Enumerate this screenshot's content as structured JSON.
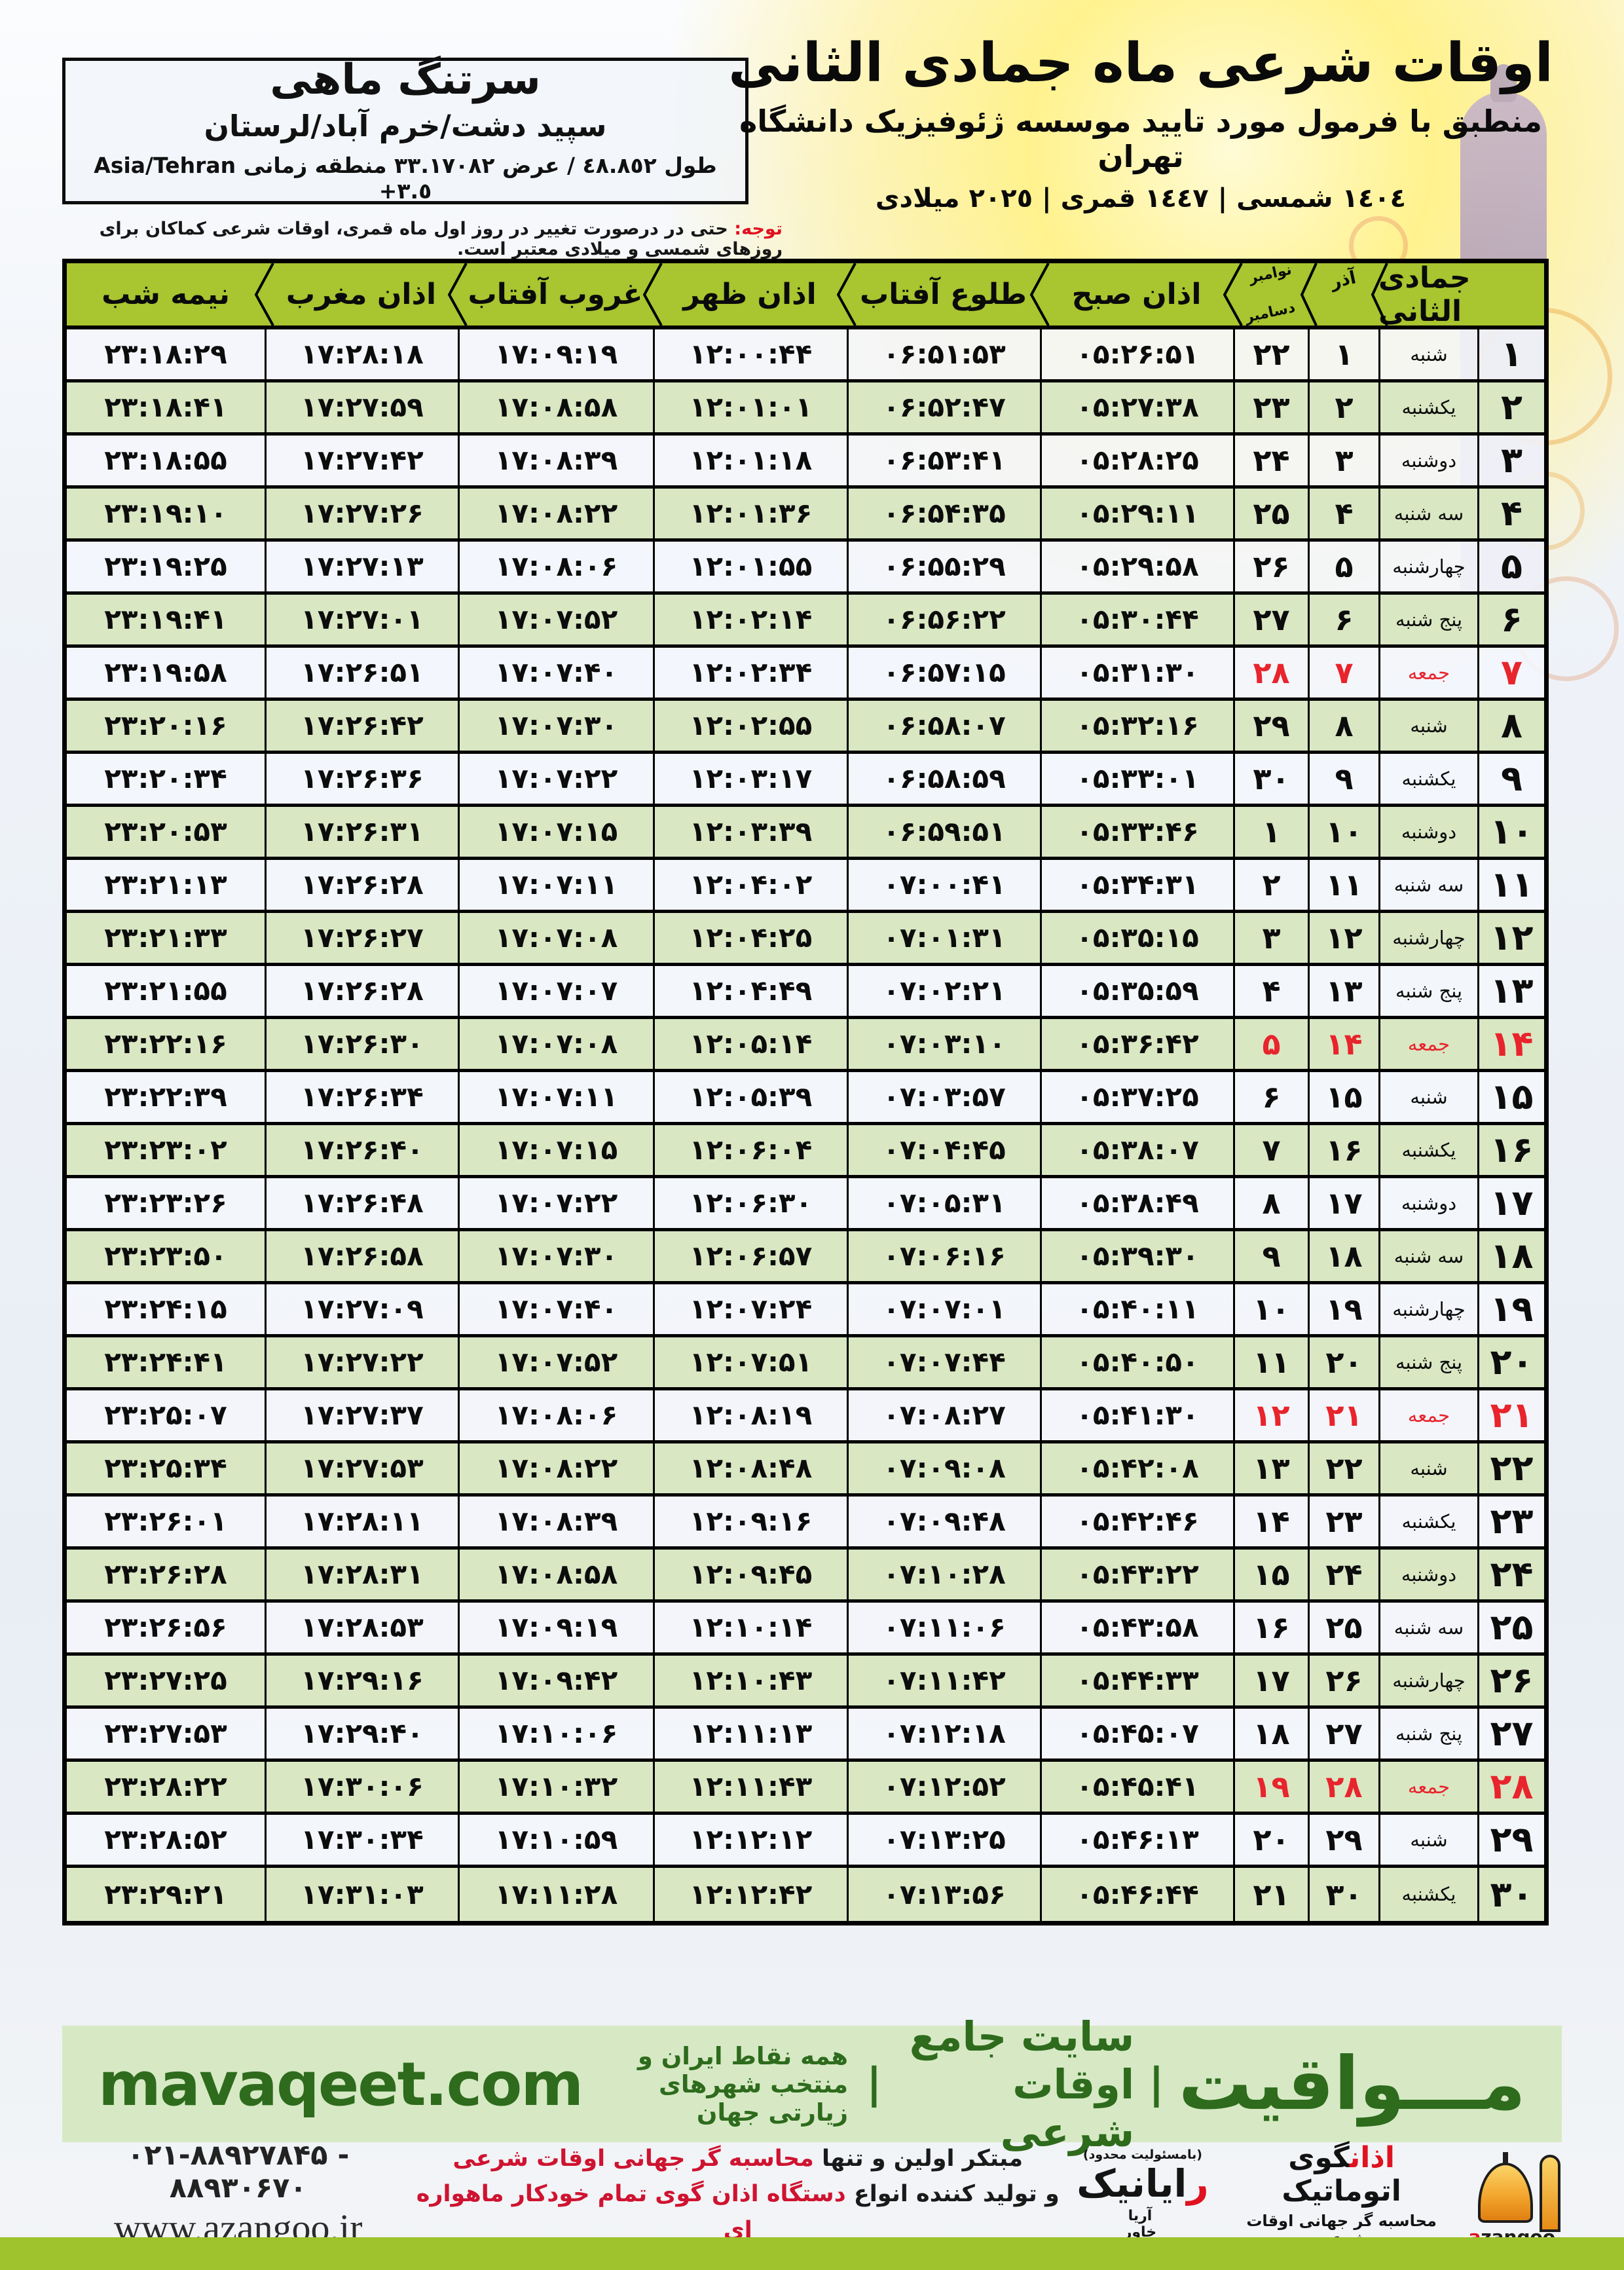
{
  "header": {
    "title": "اوقات شرعی ماه جمادی الثانی",
    "subtitle": "منطبق با فرمول مورد تایید موسسه ژئوفیزیک دانشگاه تهران",
    "years": "١٤٠٤ شمسی | ١٤٤٧ قمری | ٢٠٢٥ میلادی"
  },
  "location": {
    "name": "سرتنگ ماهی",
    "region": "سپید دشت/خرم آباد/لرستان",
    "coords_fa": "طول ٤٨.٨٥٢ / عرض ٣٣.١٧٠٨٢ منطقه زمانی",
    "coords_tz": "Asia/Tehran +٣.٥"
  },
  "note": {
    "label": "توجه:",
    "text": " حتی در درصورت تغییر در روز اول ماه قمری، اوقات شرعی کماکان برای روزهای شمسی و میلادی معتبر است."
  },
  "table": {
    "columns": {
      "month_day": "جمادی الثانی",
      "azar": "آذر",
      "november": "نوامبر",
      "december": "دسامبر",
      "fajr": "اذان صبح",
      "sunrise": "طلوع آفتاب",
      "dhuhr": "اذان ظهر",
      "sunset": "غروب آفتاب",
      "maghrib": "اذان مغرب",
      "midnight": "نیمه شب"
    },
    "rows": [
      {
        "day": "۱",
        "weekday": "شنبه",
        "azar": "۱",
        "greg": "۲۲",
        "fajr": "۰۵:۲۶:۵۱",
        "sunrise": "۰۶:۵۱:۵۳",
        "dhuhr": "۱۲:۰۰:۴۴",
        "sunset": "۱۷:۰۹:۱۹",
        "maghrib": "۱۷:۲۸:۱۸",
        "midnight": "۲۳:۱۸:۲۹",
        "friday": false
      },
      {
        "day": "۲",
        "weekday": "یکشنبه",
        "azar": "۲",
        "greg": "۲۳",
        "fajr": "۰۵:۲۷:۳۸",
        "sunrise": "۰۶:۵۲:۴۷",
        "dhuhr": "۱۲:۰۱:۰۱",
        "sunset": "۱۷:۰۸:۵۸",
        "maghrib": "۱۷:۲۷:۵۹",
        "midnight": "۲۳:۱۸:۴۱",
        "friday": false
      },
      {
        "day": "۳",
        "weekday": "دوشنبه",
        "azar": "۳",
        "greg": "۲۴",
        "fajr": "۰۵:۲۸:۲۵",
        "sunrise": "۰۶:۵۳:۴۱",
        "dhuhr": "۱۲:۰۱:۱۸",
        "sunset": "۱۷:۰۸:۳۹",
        "maghrib": "۱۷:۲۷:۴۲",
        "midnight": "۲۳:۱۸:۵۵",
        "friday": false
      },
      {
        "day": "۴",
        "weekday": "سه شنبه",
        "azar": "۴",
        "greg": "۲۵",
        "fajr": "۰۵:۲۹:۱۱",
        "sunrise": "۰۶:۵۴:۳۵",
        "dhuhr": "۱۲:۰۱:۳۶",
        "sunset": "۱۷:۰۸:۲۲",
        "maghrib": "۱۷:۲۷:۲۶",
        "midnight": "۲۳:۱۹:۱۰",
        "friday": false
      },
      {
        "day": "۵",
        "weekday": "چهارشنبه",
        "azar": "۵",
        "greg": "۲۶",
        "fajr": "۰۵:۲۹:۵۸",
        "sunrise": "۰۶:۵۵:۲۹",
        "dhuhr": "۱۲:۰۱:۵۵",
        "sunset": "۱۷:۰۸:۰۶",
        "maghrib": "۱۷:۲۷:۱۳",
        "midnight": "۲۳:۱۹:۲۵",
        "friday": false
      },
      {
        "day": "۶",
        "weekday": "پنج شنبه",
        "azar": "۶",
        "greg": "۲۷",
        "fajr": "۰۵:۳۰:۴۴",
        "sunrise": "۰۶:۵۶:۲۲",
        "dhuhr": "۱۲:۰۲:۱۴",
        "sunset": "۱۷:۰۷:۵۲",
        "maghrib": "۱۷:۲۷:۰۱",
        "midnight": "۲۳:۱۹:۴۱",
        "friday": false
      },
      {
        "day": "۷",
        "weekday": "جمعه",
        "azar": "۷",
        "greg": "۲۸",
        "fajr": "۰۵:۳۱:۳۰",
        "sunrise": "۰۶:۵۷:۱۵",
        "dhuhr": "۱۲:۰۲:۳۴",
        "sunset": "۱۷:۰۷:۴۰",
        "maghrib": "۱۷:۲۶:۵۱",
        "midnight": "۲۳:۱۹:۵۸",
        "friday": true
      },
      {
        "day": "۸",
        "weekday": "شنبه",
        "azar": "۸",
        "greg": "۲۹",
        "fajr": "۰۵:۳۲:۱۶",
        "sunrise": "۰۶:۵۸:۰۷",
        "dhuhr": "۱۲:۰۲:۵۵",
        "sunset": "۱۷:۰۷:۳۰",
        "maghrib": "۱۷:۲۶:۴۲",
        "midnight": "۲۳:۲۰:۱۶",
        "friday": false
      },
      {
        "day": "۹",
        "weekday": "یکشنبه",
        "azar": "۹",
        "greg": "۳۰",
        "fajr": "۰۵:۳۳:۰۱",
        "sunrise": "۰۶:۵۸:۵۹",
        "dhuhr": "۱۲:۰۳:۱۷",
        "sunset": "۱۷:۰۷:۲۲",
        "maghrib": "۱۷:۲۶:۳۶",
        "midnight": "۲۳:۲۰:۳۴",
        "friday": false
      },
      {
        "day": "۱۰",
        "weekday": "دوشنبه",
        "azar": "۱۰",
        "greg": "۱",
        "fajr": "۰۵:۳۳:۴۶",
        "sunrise": "۰۶:۵۹:۵۱",
        "dhuhr": "۱۲:۰۳:۳۹",
        "sunset": "۱۷:۰۷:۱۵",
        "maghrib": "۱۷:۲۶:۳۱",
        "midnight": "۲۳:۲۰:۵۳",
        "friday": false
      },
      {
        "day": "۱۱",
        "weekday": "سه شنبه",
        "azar": "۱۱",
        "greg": "۲",
        "fajr": "۰۵:۳۴:۳۱",
        "sunrise": "۰۷:۰۰:۴۱",
        "dhuhr": "۱۲:۰۴:۰۲",
        "sunset": "۱۷:۰۷:۱۱",
        "maghrib": "۱۷:۲۶:۲۸",
        "midnight": "۲۳:۲۱:۱۳",
        "friday": false
      },
      {
        "day": "۱۲",
        "weekday": "چهارشنبه",
        "azar": "۱۲",
        "greg": "۳",
        "fajr": "۰۵:۳۵:۱۵",
        "sunrise": "۰۷:۰۱:۳۱",
        "dhuhr": "۱۲:۰۴:۲۵",
        "sunset": "۱۷:۰۷:۰۸",
        "maghrib": "۱۷:۲۶:۲۷",
        "midnight": "۲۳:۲۱:۳۳",
        "friday": false
      },
      {
        "day": "۱۳",
        "weekday": "پنج شنبه",
        "azar": "۱۳",
        "greg": "۴",
        "fajr": "۰۵:۳۵:۵۹",
        "sunrise": "۰۷:۰۲:۲۱",
        "dhuhr": "۱۲:۰۴:۴۹",
        "sunset": "۱۷:۰۷:۰۷",
        "maghrib": "۱۷:۲۶:۲۸",
        "midnight": "۲۳:۲۱:۵۵",
        "friday": false
      },
      {
        "day": "۱۴",
        "weekday": "جمعه",
        "azar": "۱۴",
        "greg": "۵",
        "fajr": "۰۵:۳۶:۴۲",
        "sunrise": "۰۷:۰۳:۱۰",
        "dhuhr": "۱۲:۰۵:۱۴",
        "sunset": "۱۷:۰۷:۰۸",
        "maghrib": "۱۷:۲۶:۳۰",
        "midnight": "۲۳:۲۲:۱۶",
        "friday": true
      },
      {
        "day": "۱۵",
        "weekday": "شنبه",
        "azar": "۱۵",
        "greg": "۶",
        "fajr": "۰۵:۳۷:۲۵",
        "sunrise": "۰۷:۰۳:۵۷",
        "dhuhr": "۱۲:۰۵:۳۹",
        "sunset": "۱۷:۰۷:۱۱",
        "maghrib": "۱۷:۲۶:۳۴",
        "midnight": "۲۳:۲۲:۳۹",
        "friday": false
      },
      {
        "day": "۱۶",
        "weekday": "یکشنبه",
        "azar": "۱۶",
        "greg": "۷",
        "fajr": "۰۵:۳۸:۰۷",
        "sunrise": "۰۷:۰۴:۴۵",
        "dhuhr": "۱۲:۰۶:۰۴",
        "sunset": "۱۷:۰۷:۱۵",
        "maghrib": "۱۷:۲۶:۴۰",
        "midnight": "۲۳:۲۳:۰۲",
        "friday": false
      },
      {
        "day": "۱۷",
        "weekday": "دوشنبه",
        "azar": "۱۷",
        "greg": "۸",
        "fajr": "۰۵:۳۸:۴۹",
        "sunrise": "۰۷:۰۵:۳۱",
        "dhuhr": "۱۲:۰۶:۳۰",
        "sunset": "۱۷:۰۷:۲۲",
        "maghrib": "۱۷:۲۶:۴۸",
        "midnight": "۲۳:۲۳:۲۶",
        "friday": false
      },
      {
        "day": "۱۸",
        "weekday": "سه شنبه",
        "azar": "۱۸",
        "greg": "۹",
        "fajr": "۰۵:۳۹:۳۰",
        "sunrise": "۰۷:۰۶:۱۶",
        "dhuhr": "۱۲:۰۶:۵۷",
        "sunset": "۱۷:۰۷:۳۰",
        "maghrib": "۱۷:۲۶:۵۸",
        "midnight": "۲۳:۲۳:۵۰",
        "friday": false
      },
      {
        "day": "۱۹",
        "weekday": "چهارشنبه",
        "azar": "۱۹",
        "greg": "۱۰",
        "fajr": "۰۵:۴۰:۱۱",
        "sunrise": "۰۷:۰۷:۰۱",
        "dhuhr": "۱۲:۰۷:۲۴",
        "sunset": "۱۷:۰۷:۴۰",
        "maghrib": "۱۷:۲۷:۰۹",
        "midnight": "۲۳:۲۴:۱۵",
        "friday": false
      },
      {
        "day": "۲۰",
        "weekday": "پنج شنبه",
        "azar": "۲۰",
        "greg": "۱۱",
        "fajr": "۰۵:۴۰:۵۰",
        "sunrise": "۰۷:۰۷:۴۴",
        "dhuhr": "۱۲:۰۷:۵۱",
        "sunset": "۱۷:۰۷:۵۲",
        "maghrib": "۱۷:۲۷:۲۲",
        "midnight": "۲۳:۲۴:۴۱",
        "friday": false
      },
      {
        "day": "۲۱",
        "weekday": "جمعه",
        "azar": "۲۱",
        "greg": "۱۲",
        "fajr": "۰۵:۴۱:۳۰",
        "sunrise": "۰۷:۰۸:۲۷",
        "dhuhr": "۱۲:۰۸:۱۹",
        "sunset": "۱۷:۰۸:۰۶",
        "maghrib": "۱۷:۲۷:۳۷",
        "midnight": "۲۳:۲۵:۰۷",
        "friday": true
      },
      {
        "day": "۲۲",
        "weekday": "شنبه",
        "azar": "۲۲",
        "greg": "۱۳",
        "fajr": "۰۵:۴۲:۰۸",
        "sunrise": "۰۷:۰۹:۰۸",
        "dhuhr": "۱۲:۰۸:۴۸",
        "sunset": "۱۷:۰۸:۲۲",
        "maghrib": "۱۷:۲۷:۵۳",
        "midnight": "۲۳:۲۵:۳۴",
        "friday": false
      },
      {
        "day": "۲۳",
        "weekday": "یکشنبه",
        "azar": "۲۳",
        "greg": "۱۴",
        "fajr": "۰۵:۴۲:۴۶",
        "sunrise": "۰۷:۰۹:۴۸",
        "dhuhr": "۱۲:۰۹:۱۶",
        "sunset": "۱۷:۰۸:۳۹",
        "maghrib": "۱۷:۲۸:۱۱",
        "midnight": "۲۳:۲۶:۰۱",
        "friday": false
      },
      {
        "day": "۲۴",
        "weekday": "دوشنبه",
        "azar": "۲۴",
        "greg": "۱۵",
        "fajr": "۰۵:۴۳:۲۲",
        "sunrise": "۰۷:۱۰:۲۸",
        "dhuhr": "۱۲:۰۹:۴۵",
        "sunset": "۱۷:۰۸:۵۸",
        "maghrib": "۱۷:۲۸:۳۱",
        "midnight": "۲۳:۲۶:۲۸",
        "friday": false
      },
      {
        "day": "۲۵",
        "weekday": "سه شنبه",
        "azar": "۲۵",
        "greg": "۱۶",
        "fajr": "۰۵:۴۳:۵۸",
        "sunrise": "۰۷:۱۱:۰۶",
        "dhuhr": "۱۲:۱۰:۱۴",
        "sunset": "۱۷:۰۹:۱۹",
        "maghrib": "۱۷:۲۸:۵۳",
        "midnight": "۲۳:۲۶:۵۶",
        "friday": false
      },
      {
        "day": "۲۶",
        "weekday": "چهارشنبه",
        "azar": "۲۶",
        "greg": "۱۷",
        "fajr": "۰۵:۴۴:۳۳",
        "sunrise": "۰۷:۱۱:۴۲",
        "dhuhr": "۱۲:۱۰:۴۳",
        "sunset": "۱۷:۰۹:۴۲",
        "maghrib": "۱۷:۲۹:۱۶",
        "midnight": "۲۳:۲۷:۲۵",
        "friday": false
      },
      {
        "day": "۲۷",
        "weekday": "پنج شنبه",
        "azar": "۲۷",
        "greg": "۱۸",
        "fajr": "۰۵:۴۵:۰۷",
        "sunrise": "۰۷:۱۲:۱۸",
        "dhuhr": "۱۲:۱۱:۱۳",
        "sunset": "۱۷:۱۰:۰۶",
        "maghrib": "۱۷:۲۹:۴۰",
        "midnight": "۲۳:۲۷:۵۳",
        "friday": false
      },
      {
        "day": "۲۸",
        "weekday": "جمعه",
        "azar": "۲۸",
        "greg": "۱۹",
        "fajr": "۰۵:۴۵:۴۱",
        "sunrise": "۰۷:۱۲:۵۲",
        "dhuhr": "۱۲:۱۱:۴۳",
        "sunset": "۱۷:۱۰:۳۲",
        "maghrib": "۱۷:۳۰:۰۶",
        "midnight": "۲۳:۲۸:۲۲",
        "friday": true
      },
      {
        "day": "۲۹",
        "weekday": "شنبه",
        "azar": "۲۹",
        "greg": "۲۰",
        "fajr": "۰۵:۴۶:۱۳",
        "sunrise": "۰۷:۱۳:۲۵",
        "dhuhr": "۱۲:۱۲:۱۲",
        "sunset": "۱۷:۱۰:۵۹",
        "maghrib": "۱۷:۳۰:۳۴",
        "midnight": "۲۳:۲۸:۵۲",
        "friday": false
      },
      {
        "day": "۳۰",
        "weekday": "یکشنبه",
        "azar": "۳۰",
        "greg": "۲۱",
        "fajr": "۰۵:۴۶:۴۴",
        "sunrise": "۰۷:۱۳:۵۶",
        "dhuhr": "۱۲:۱۲:۴۲",
        "sunset": "۱۷:۱۱:۲۸",
        "maghrib": "۱۷:۳۱:۰۳",
        "midnight": "۲۳:۲۹:۲۱",
        "friday": false
      }
    ]
  },
  "mavaqeet": {
    "brand": "مـــواقیت",
    "sep": "|",
    "tagline": "سایت جامع اوقات شرعی",
    "coverage": "همه نقاط ایران و منتخب شهرهای زیارتی جهان",
    "domain": "mavaqeet.com"
  },
  "bottom": {
    "phone": "۰۲۱-۸۸۹۲۷۸۴۵ - ۸۸۹۳۰۶۷۰",
    "website": "www.azangoo.ir",
    "line1_black": "مبتکر اولین و تنها ",
    "line1_red": "محاسبه گر جهانی اوقات شرعی",
    "line2_black": "و تولید کننده انواع ",
    "line2_red": "دستگاه اذان گوی تمام خودکار ماهواره ای",
    "rayanik": {
      "note": "(بامسئولیت محدود)",
      "name_first": "ر",
      "name_rest": "ایانیک",
      "sub1": "آریا",
      "sub2": "خاور"
    },
    "azangoo": {
      "fa_first": "اذان",
      "fa_rest": "گوی اتوماتیک",
      "sub_fa": "محاسبه گر جهانی اوقات شرعی",
      "latin_a": "a",
      "latin_rest": "zangoo"
    }
  },
  "colors": {
    "header_green": "#a9c52f",
    "row_green": "#d9e7c3",
    "friday_red": "#e8242c",
    "footer_green": "#d6e9c4",
    "dark_green": "#2e6b1d",
    "lime_bar": "#9fc32c"
  }
}
